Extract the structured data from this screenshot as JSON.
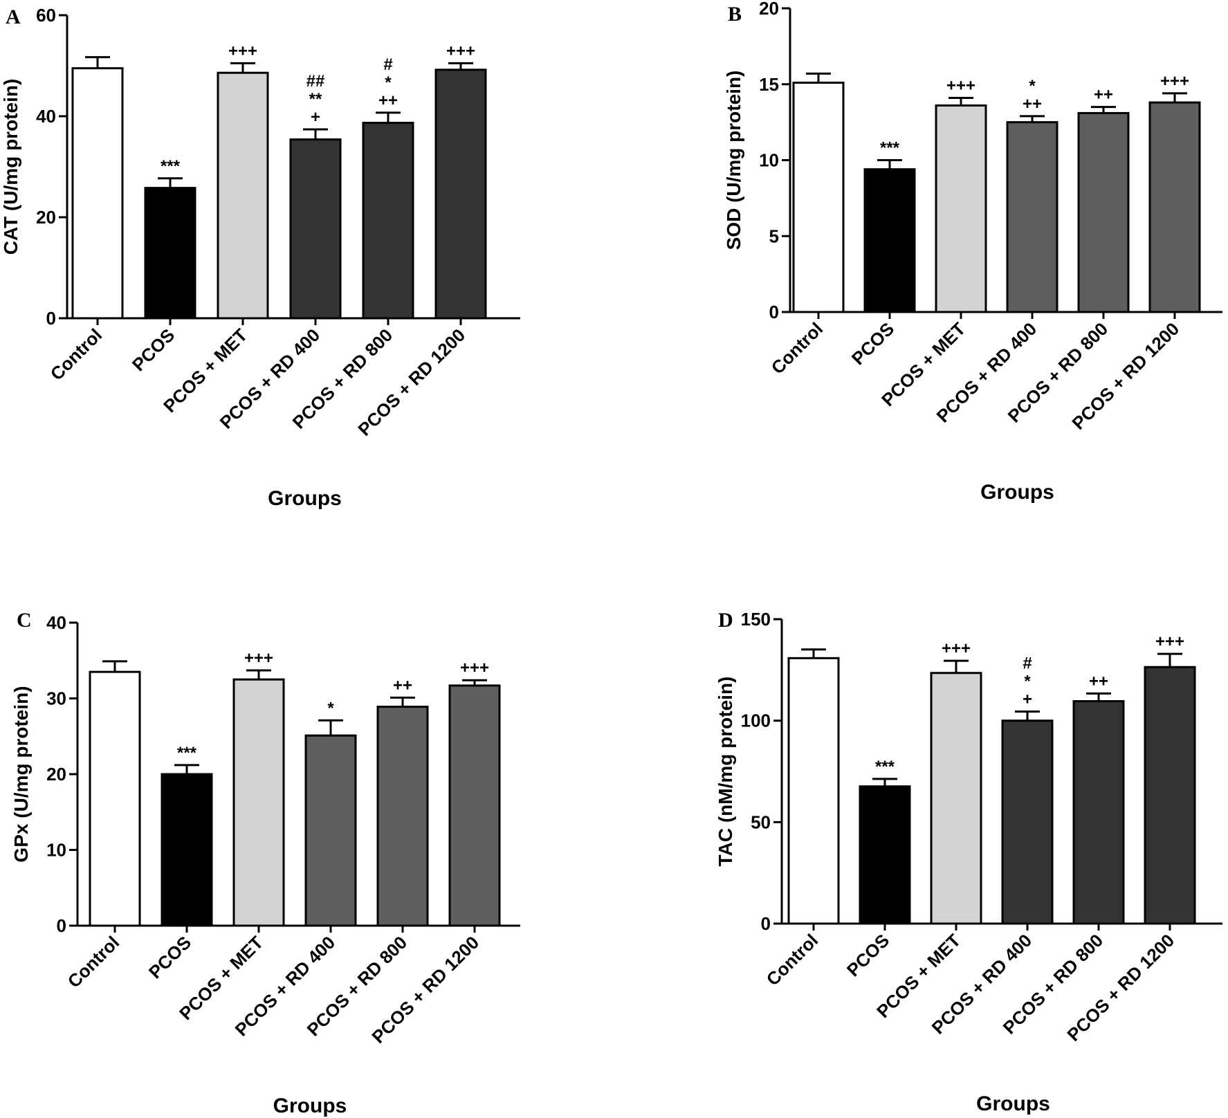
{
  "figure_caption": "",
  "chart_data": [
    {
      "panel": "A",
      "type": "bar",
      "xlabel": "Groups",
      "ylabel": "CAT (U/mg protein)",
      "ylim": [
        0,
        60
      ],
      "yticks": [
        "0",
        "20",
        "40",
        "60"
      ],
      "categories": [
        "Control",
        "PCOS",
        "PCOS + MET",
        "PCOS + RD 400",
        "PCOS + RD 800",
        "PCOS + RD 1200"
      ],
      "values": [
        49.5,
        25.8,
        48.6,
        35.4,
        38.7,
        49.2
      ],
      "errors": [
        2.2,
        1.9,
        1.9,
        2.0,
        2.0,
        1.3
      ],
      "bar_colors": [
        "#ffffff",
        "#000000",
        "#d3d3d3",
        "#333333",
        "#333333",
        "#333333"
      ],
      "significance": [
        [],
        [
          "***"
        ],
        [
          "+++"
        ],
        [
          "##",
          "**",
          "+"
        ],
        [
          "#",
          "*",
          "++"
        ],
        [
          "+++"
        ]
      ]
    },
    {
      "panel": "B",
      "type": "bar",
      "xlabel": "Groups",
      "ylabel": "SOD (U/mg protein)",
      "ylim": [
        0,
        20
      ],
      "yticks": [
        "0",
        "5",
        "10",
        "15",
        "20"
      ],
      "categories": [
        "Control",
        "PCOS",
        "PCOS + MET",
        "PCOS + RD 400",
        "PCOS + RD 800",
        "PCOS + RD 1200"
      ],
      "values": [
        15.1,
        9.4,
        13.6,
        12.5,
        13.1,
        13.8
      ],
      "errors": [
        0.6,
        0.6,
        0.5,
        0.4,
        0.4,
        0.6
      ],
      "bar_colors": [
        "#ffffff",
        "#000000",
        "#d3d3d3",
        "#5e5e5e",
        "#5e5e5e",
        "#5e5e5e"
      ],
      "significance": [
        [],
        [
          "***"
        ],
        [
          "+++"
        ],
        [
          "*",
          "++"
        ],
        [
          "++"
        ],
        [
          "+++"
        ]
      ]
    },
    {
      "panel": "C",
      "type": "bar",
      "xlabel": "Groups",
      "ylabel": "GPx (U/mg protein)",
      "ylim": [
        0,
        40
      ],
      "yticks": [
        "0",
        "10",
        "20",
        "30",
        "40"
      ],
      "categories": [
        "Control",
        "PCOS",
        "PCOS + MET",
        "PCOS + RD 400",
        "PCOS + RD 800",
        "PCOS + RD 1200"
      ],
      "values": [
        33.5,
        20.0,
        32.5,
        25.1,
        28.9,
        31.7
      ],
      "errors": [
        1.4,
        1.2,
        1.2,
        2.0,
        1.2,
        0.7
      ],
      "bar_colors": [
        "#ffffff",
        "#000000",
        "#d3d3d3",
        "#5e5e5e",
        "#5e5e5e",
        "#5e5e5e"
      ],
      "significance": [
        [],
        [
          "***"
        ],
        [
          "+++"
        ],
        [
          "*"
        ],
        [
          "++"
        ],
        [
          "+++"
        ]
      ]
    },
    {
      "panel": "D",
      "type": "bar",
      "xlabel": "Groups",
      "ylabel": "TAC (nM/mg protein)",
      "ylim": [
        0,
        150
      ],
      "yticks": [
        "0",
        "50",
        "100",
        "150"
      ],
      "categories": [
        "Control",
        "PCOS",
        "PCOS + MET",
        "PCOS + RD 400",
        "PCOS + RD 800",
        "PCOS + RD 1200"
      ],
      "values": [
        130.8,
        67.6,
        123.5,
        100.0,
        109.6,
        126.4
      ],
      "errors": [
        4.3,
        3.7,
        6.0,
        4.5,
        3.8,
        6.5
      ],
      "bar_colors": [
        "#ffffff",
        "#000000",
        "#d3d3d3",
        "#333333",
        "#333333",
        "#333333"
      ],
      "significance": [
        [],
        [
          "***"
        ],
        [
          "+++"
        ],
        [
          "#",
          "*",
          "+"
        ],
        [
          "++"
        ],
        [
          "+++"
        ]
      ]
    }
  ]
}
